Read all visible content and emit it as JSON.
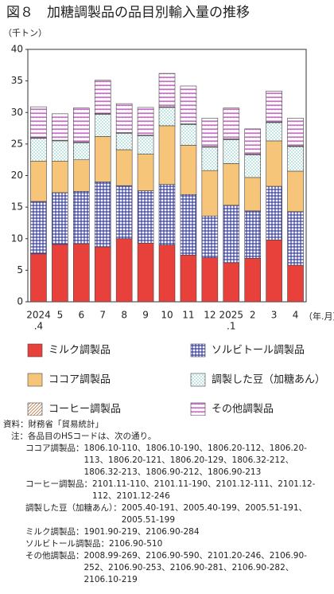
{
  "chart_data": {
    "type": "stacked_bar",
    "title": "図８　加糖調製品の品目別輸入量の推移",
    "y_unit": "（千トン）",
    "x_unit": "（年.月）",
    "categories": [
      [
        "2024",
        ".4"
      ],
      "5",
      "6",
      "7",
      "8",
      "9",
      "10",
      "11",
      "12",
      [
        "2025",
        ".1"
      ],
      "2",
      "3",
      "4"
    ],
    "ylim": [
      0,
      40
    ],
    "yticks": [
      0,
      5,
      10,
      15,
      20,
      25,
      30,
      35,
      40
    ],
    "series": [
      {
        "name": "ミルク調製品",
        "color": "#e8403b",
        "pattern": "solid",
        "values": [
          7.6,
          9.1,
          9.2,
          8.7,
          10.0,
          9.3,
          9.0,
          7.4,
          7.0,
          6.2,
          6.9,
          9.8,
          5.8
        ]
      },
      {
        "name": "ソルビトール調製品",
        "color": "#3a3fa8",
        "pattern": "grid",
        "values": [
          8.3,
          8.2,
          8.3,
          10.3,
          8.4,
          8.3,
          9.6,
          9.6,
          6.6,
          9.1,
          7.5,
          8.5,
          8.5
        ]
      },
      {
        "name": "ココア調製品",
        "color": "#f7c57a",
        "pattern": "solid",
        "values": [
          6.4,
          5.0,
          5.0,
          7.2,
          5.7,
          5.8,
          9.3,
          7.8,
          7.2,
          6.6,
          5.3,
          7.2,
          6.4
        ]
      },
      {
        "name": "調製した豆（加糖あん）",
        "color": "#2aa6a0",
        "pattern": "dots",
        "values": [
          3.6,
          3.2,
          2.7,
          3.5,
          2.6,
          2.9,
          2.9,
          3.3,
          3.7,
          3.8,
          3.6,
          2.9,
          3.9
        ]
      },
      {
        "name": "コーヒー調製品",
        "color": "#b07a4a",
        "pattern": "diagonal",
        "values": [
          0.1,
          0.1,
          0.1,
          0.1,
          0.1,
          0.1,
          0.1,
          0.1,
          0.1,
          0.1,
          0.1,
          0.1,
          0.1
        ]
      },
      {
        "name": "その他調製品",
        "color": "#b24fb0",
        "pattern": "zigzag",
        "values": [
          4.9,
          4.2,
          5.4,
          5.3,
          4.6,
          4.4,
          5.3,
          6.0,
          4.5,
          4.9,
          4.0,
          4.9,
          4.4
        ]
      }
    ]
  },
  "notes": {
    "source_label": "資料：",
    "source": "財務省「貿易統計」",
    "note_label": "注：",
    "note": "各品目のHSコードは、次の通り。",
    "items": [
      {
        "label": "ココア調製品：",
        "text": "1806.10-110、1806.10-190、1806.20-112、1806.20-113、1806.20-121、1806.20-129、1806.32-212、1806.32-213、1806.90-212、1806.90-213"
      },
      {
        "label": "コーヒー調製品：",
        "text": "2101.11-110、2101.11-190、2101.12-111、2101.12-112、2101.12-246"
      },
      {
        "label": "調製した豆（加糖あん）：",
        "text": "2005.40-191、2005.40-199、2005.51-191、2005.51-199"
      },
      {
        "label": "ミルク調製品：",
        "text": "1901.90-219、2106.90-284"
      },
      {
        "label": "ソルビトール調製品：",
        "text": "2106.90-510"
      },
      {
        "label": "その他調製品：",
        "text": "2008.99-269、2106.90-590、2101.20-246、2106.90-252、2106.90-253、2106.90-281、2106.90-282、2106.10-219"
      }
    ]
  }
}
